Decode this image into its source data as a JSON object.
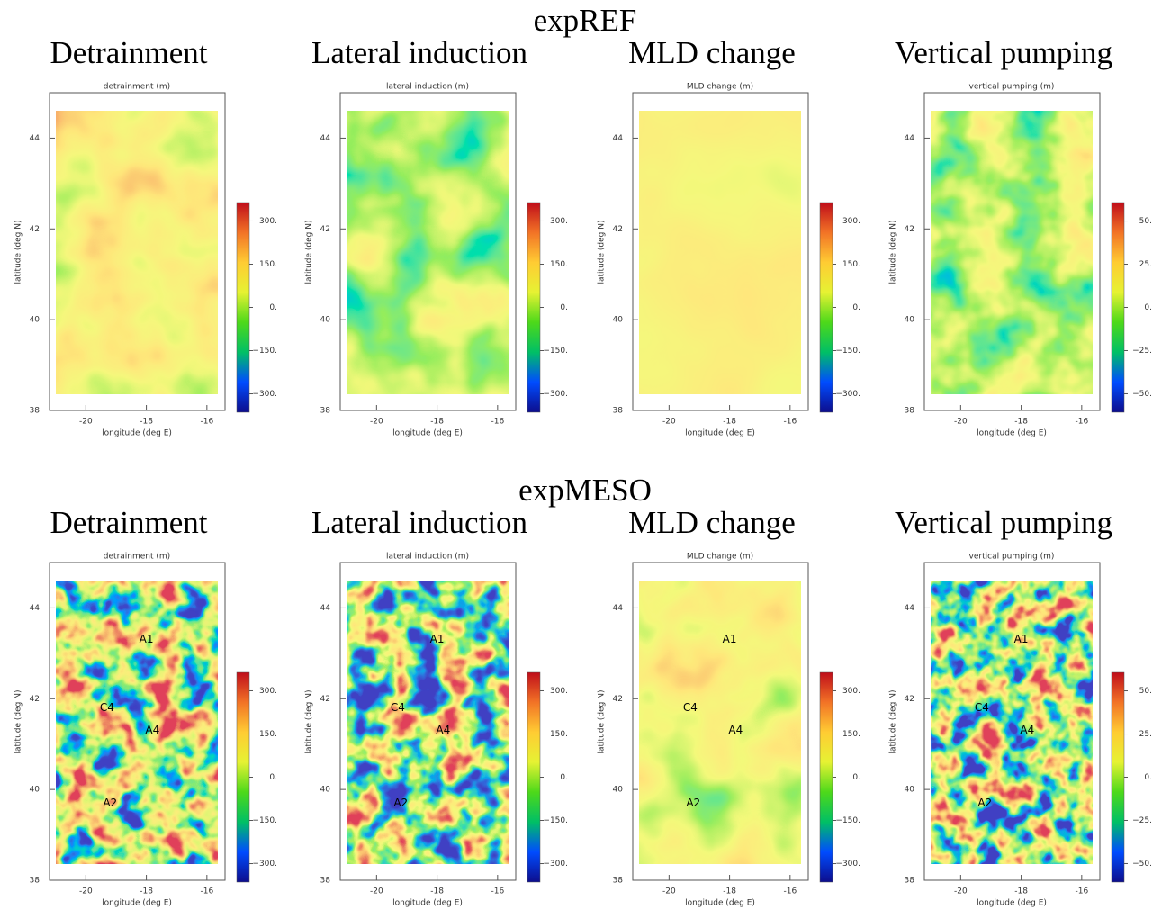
{
  "row_titles": [
    "expREF",
    "expMESO"
  ],
  "chart_data": [
    {
      "type": "map",
      "title": "Detrainment",
      "subtitle": "detrainment (m)",
      "xlabel": "longitude (deg E)",
      "ylabel": "latitude (deg N)",
      "xlim": [
        -21.2,
        -15.4
      ],
      "ylim": [
        38,
        45
      ],
      "xticks": [
        -20,
        -18,
        -16
      ],
      "yticks": [
        38,
        40,
        42,
        44
      ],
      "clim": [
        -364,
        364
      ],
      "cticks": [
        {
          "value": 300,
          "label": "300."
        },
        {
          "value": 150,
          "label": "150."
        },
        {
          "value": 0,
          "label": "0."
        },
        {
          "value": -150,
          "label": "−150."
        },
        {
          "value": -300,
          "label": "−300."
        }
      ],
      "colormap": [
        "#0d0d8c",
        "#004cff",
        "#00bf66",
        "#4dd91a",
        "#e6f233",
        "#ffcc33",
        "#f27326",
        "#bf0d1a"
      ]
    },
    {
      "type": "map",
      "title": "Lateral induction",
      "subtitle": "lateral induction (m)",
      "xlabel": "longitude (deg E)",
      "ylabel": "latitude (deg N)",
      "xlim": [
        -21.2,
        -15.4
      ],
      "ylim": [
        38,
        45
      ],
      "xticks": [
        -20,
        -18,
        -16
      ],
      "yticks": [
        38,
        40,
        42,
        44
      ],
      "clim": [
        -364,
        364
      ],
      "cticks": [
        {
          "value": 300,
          "label": "300."
        },
        {
          "value": 150,
          "label": "150."
        },
        {
          "value": 0,
          "label": "0."
        },
        {
          "value": -150,
          "label": "−150."
        },
        {
          "value": -300,
          "label": "−300."
        }
      ],
      "colormap": [
        "#0d0d8c",
        "#004cff",
        "#00bf66",
        "#4dd91a",
        "#e6f233",
        "#ffcc33",
        "#f27326",
        "#bf0d1a"
      ]
    },
    {
      "type": "map",
      "title": "MLD change",
      "subtitle": "MLD change (m)",
      "xlabel": "longitude (deg E)",
      "ylabel": "latitude (deg N)",
      "xlim": [
        -21.2,
        -15.4
      ],
      "ylim": [
        38,
        45
      ],
      "xticks": [
        -20,
        -18,
        -16
      ],
      "yticks": [
        38,
        40,
        42,
        44
      ],
      "clim": [
        -364,
        364
      ],
      "cticks": [
        {
          "value": 300,
          "label": "300."
        },
        {
          "value": 150,
          "label": "150."
        },
        {
          "value": 0,
          "label": "0."
        },
        {
          "value": -150,
          "label": "−150."
        },
        {
          "value": -300,
          "label": "−300."
        }
      ],
      "colormap": [
        "#0d0d8c",
        "#004cff",
        "#00bf66",
        "#4dd91a",
        "#e6f233",
        "#ffcc33",
        "#f27326",
        "#bf0d1a"
      ]
    },
    {
      "type": "map",
      "title": "Vertical pumping",
      "subtitle": "vertical pumping (m)",
      "xlabel": "longitude (deg E)",
      "ylabel": "latitude (deg N)",
      "xlim": [
        -21.2,
        -15.4
      ],
      "ylim": [
        38,
        45
      ],
      "xticks": [
        -20,
        -18,
        -16
      ],
      "yticks": [
        38,
        40,
        42,
        44
      ],
      "clim": [
        -60.7,
        60.7
      ],
      "cticks": [
        {
          "value": 50,
          "label": "50."
        },
        {
          "value": 25,
          "label": "25."
        },
        {
          "value": 0,
          "label": "0."
        },
        {
          "value": -25,
          "label": "−25."
        },
        {
          "value": -50,
          "label": "−50."
        }
      ],
      "colormap": [
        "#0d0d8c",
        "#004cff",
        "#00bf66",
        "#4dd91a",
        "#e6f233",
        "#ffcc33",
        "#f27326",
        "#bf0d1a"
      ]
    },
    {
      "type": "map",
      "title": "Detrainment",
      "subtitle": "detrainment (m)",
      "xlabel": "longitude (deg E)",
      "ylabel": "latitude (deg N)",
      "xlim": [
        -21.2,
        -15.4
      ],
      "ylim": [
        38,
        45
      ],
      "xticks": [
        -20,
        -18,
        -16
      ],
      "yticks": [
        38,
        40,
        42,
        44
      ],
      "clim": [
        -364,
        364
      ],
      "cticks": [
        {
          "value": 300,
          "label": "300."
        },
        {
          "value": 150,
          "label": "150."
        },
        {
          "value": 0,
          "label": "0."
        },
        {
          "value": -150,
          "label": "−150."
        },
        {
          "value": -300,
          "label": "−300."
        }
      ],
      "colormap": [
        "#0d0d8c",
        "#004cff",
        "#00bf66",
        "#4dd91a",
        "#e6f233",
        "#ffcc33",
        "#f27326",
        "#bf0d1a"
      ],
      "annotations": [
        {
          "text": "A1",
          "x": -18,
          "y": 43.3
        },
        {
          "text": "C4",
          "x": -19.3,
          "y": 41.8
        },
        {
          "text": "A4",
          "x": -17.8,
          "y": 41.3
        },
        {
          "text": "A2",
          "x": -19.2,
          "y": 39.7
        }
      ]
    },
    {
      "type": "map",
      "title": "Lateral induction",
      "subtitle": "lateral induction (m)",
      "xlabel": "longitude (deg E)",
      "ylabel": "latitude (deg N)",
      "xlim": [
        -21.2,
        -15.4
      ],
      "ylim": [
        38,
        45
      ],
      "xticks": [
        -20,
        -18,
        -16
      ],
      "yticks": [
        38,
        40,
        42,
        44
      ],
      "clim": [
        -364,
        364
      ],
      "cticks": [
        {
          "value": 300,
          "label": "300."
        },
        {
          "value": 150,
          "label": "150."
        },
        {
          "value": 0,
          "label": "0."
        },
        {
          "value": -150,
          "label": "−150."
        },
        {
          "value": -300,
          "label": "−300."
        }
      ],
      "colormap": [
        "#0d0d8c",
        "#004cff",
        "#00bf66",
        "#4dd91a",
        "#e6f233",
        "#ffcc33",
        "#f27326",
        "#bf0d1a"
      ],
      "annotations": [
        {
          "text": "A1",
          "x": -18,
          "y": 43.3
        },
        {
          "text": "C4",
          "x": -19.3,
          "y": 41.8
        },
        {
          "text": "A4",
          "x": -17.8,
          "y": 41.3
        },
        {
          "text": "A2",
          "x": -19.2,
          "y": 39.7
        }
      ]
    },
    {
      "type": "map",
      "title": "MLD change",
      "subtitle": "MLD change (m)",
      "xlabel": "longitude (deg E)",
      "ylabel": "latitude (deg N)",
      "xlim": [
        -21.2,
        -15.4
      ],
      "ylim": [
        38,
        45
      ],
      "xticks": [
        -20,
        -18,
        -16
      ],
      "yticks": [
        38,
        40,
        42,
        44
      ],
      "clim": [
        -364,
        364
      ],
      "cticks": [
        {
          "value": 300,
          "label": "300."
        },
        {
          "value": 150,
          "label": "150."
        },
        {
          "value": 0,
          "label": "0."
        },
        {
          "value": -150,
          "label": "−150."
        },
        {
          "value": -300,
          "label": "−300."
        }
      ],
      "colormap": [
        "#0d0d8c",
        "#004cff",
        "#00bf66",
        "#4dd91a",
        "#e6f233",
        "#ffcc33",
        "#f27326",
        "#bf0d1a"
      ],
      "annotations": [
        {
          "text": "A1",
          "x": -18,
          "y": 43.3
        },
        {
          "text": "C4",
          "x": -19.3,
          "y": 41.8
        },
        {
          "text": "A4",
          "x": -17.8,
          "y": 41.3
        },
        {
          "text": "A2",
          "x": -19.2,
          "y": 39.7
        }
      ]
    },
    {
      "type": "map",
      "title": "Vertical pumping",
      "subtitle": "vertical pumping (m)",
      "xlabel": "longitude (deg E)",
      "ylabel": "latitude (deg N)",
      "xlim": [
        -21.2,
        -15.4
      ],
      "ylim": [
        38,
        45
      ],
      "xticks": [
        -20,
        -18,
        -16
      ],
      "yticks": [
        38,
        40,
        42,
        44
      ],
      "clim": [
        -60.7,
        60.7
      ],
      "cticks": [
        {
          "value": 50,
          "label": "50."
        },
        {
          "value": 25,
          "label": "25."
        },
        {
          "value": 0,
          "label": "0."
        },
        {
          "value": -25,
          "label": "−25."
        },
        {
          "value": -50,
          "label": "−50."
        }
      ],
      "colormap": [
        "#0d0d8c",
        "#004cff",
        "#00bf66",
        "#4dd91a",
        "#e6f233",
        "#ffcc33",
        "#f27326",
        "#bf0d1a"
      ],
      "annotations": [
        {
          "text": "A1",
          "x": -18,
          "y": 43.3
        },
        {
          "text": "C4",
          "x": -19.3,
          "y": 41.8
        },
        {
          "text": "A4",
          "x": -17.8,
          "y": 41.3
        },
        {
          "text": "A2",
          "x": -19.2,
          "y": 39.7
        }
      ]
    }
  ]
}
